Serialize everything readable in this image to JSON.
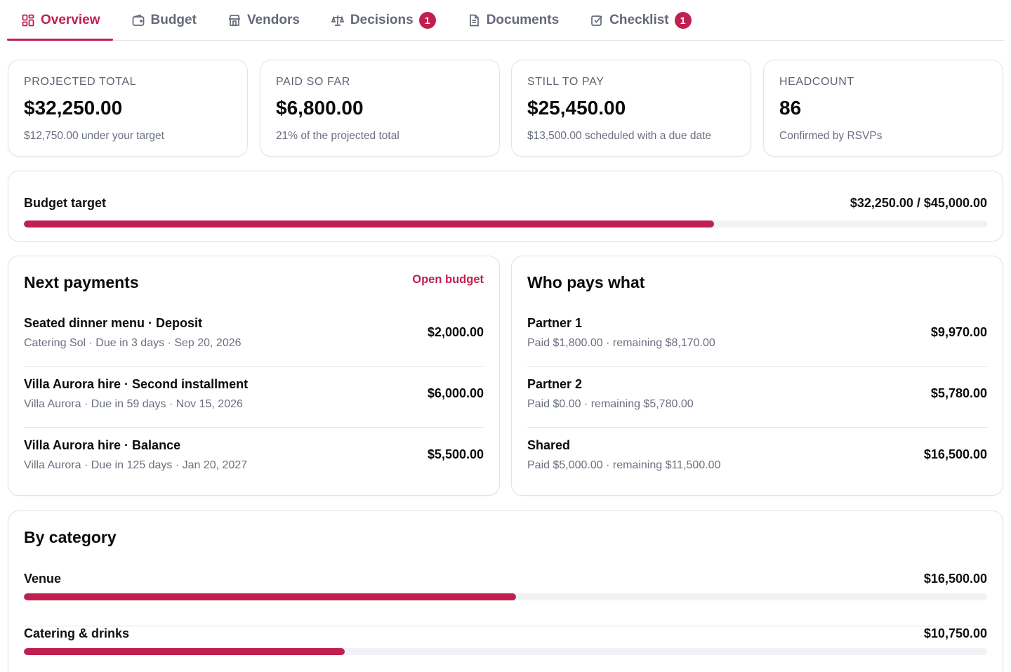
{
  "tabs": [
    {
      "label": "Overview",
      "icon": "dashboard-grid-icon",
      "active": true
    },
    {
      "label": "Budget",
      "icon": "wallet-icon"
    },
    {
      "label": "Vendors",
      "icon": "storefront-icon"
    },
    {
      "label": "Decisions",
      "icon": "scale-icon",
      "badge": "1"
    },
    {
      "label": "Documents",
      "icon": "document-icon"
    },
    {
      "label": "Checklist",
      "icon": "checkbox-icon",
      "badge": "1"
    }
  ],
  "stats": [
    {
      "label": "PROJECTED TOTAL",
      "value": "$32,250.00",
      "sub": "$12,750.00 under your target"
    },
    {
      "label": "PAID SO FAR",
      "value": "$6,800.00",
      "sub": "21% of the projected total"
    },
    {
      "label": "STILL TO PAY",
      "value": "$25,450.00",
      "sub": "$13,500.00 scheduled with a due date"
    },
    {
      "label": "HEADCOUNT",
      "value": "86",
      "sub": "Confirmed by RSVPs"
    }
  ],
  "budget_target": {
    "label": "Budget target",
    "value": "$32,250.00 / $45,000.00",
    "progress": 0.7167
  },
  "next_payments": {
    "title": "Next payments",
    "link": "Open budget",
    "items": [
      {
        "title": "Seated dinner menu · Deposit",
        "sub": "Catering Sol · Due in 3 days · Sep 20, 2026",
        "amount": "$2,000.00"
      },
      {
        "title": "Villa Aurora hire · Second installment",
        "sub": "Villa Aurora · Due in 59 days · Nov 15, 2026",
        "amount": "$6,000.00"
      },
      {
        "title": "Villa Aurora hire · Balance",
        "sub": "Villa Aurora · Due in 125 days · Jan 20, 2027",
        "amount": "$5,500.00"
      }
    ]
  },
  "who_pays": {
    "title": "Who pays what",
    "items": [
      {
        "title": "Partner 1",
        "sub": "Paid $1,800.00 · remaining $8,170.00",
        "amount": "$9,970.00"
      },
      {
        "title": "Partner 2",
        "sub": "Paid $0.00 · remaining $5,780.00",
        "amount": "$5,780.00"
      },
      {
        "title": "Shared",
        "sub": "Paid $5,000.00 · remaining $11,500.00",
        "amount": "$16,500.00"
      }
    ]
  },
  "by_category": {
    "title": "By category",
    "items": [
      {
        "name": "Venue",
        "value": "$16,500.00",
        "progress": 0.511
      },
      {
        "name": "Catering & drinks",
        "value": "$10,750.00",
        "progress": 0.333
      }
    ]
  },
  "colors": {
    "accent": "#c0204f",
    "muted": "#6b7080",
    "border": "#e2e3e8"
  }
}
